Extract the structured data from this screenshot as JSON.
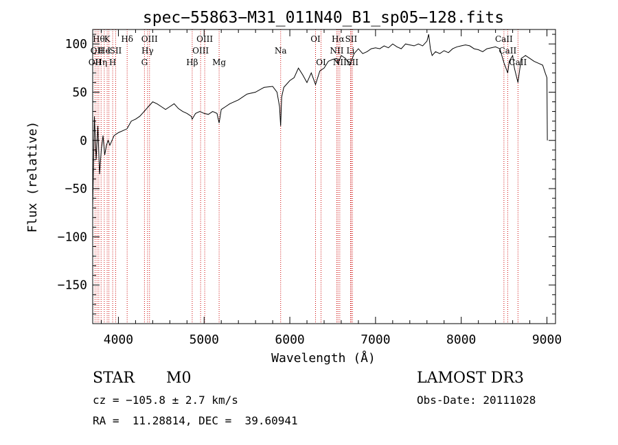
{
  "chart_data": {
    "type": "line",
    "title": "spec−55863−M31_011N40_B1_sp05−128.fits",
    "xlabel": "Wavelength (Å)",
    "ylabel": "Flux (relative)",
    "xlim": [
      3700,
      9100
    ],
    "ylim": [
      -190,
      115
    ],
    "xticks": [
      4000,
      5000,
      6000,
      7000,
      8000,
      9000
    ],
    "yticks": [
      100,
      50,
      0,
      -50,
      -100,
      -150
    ],
    "ytick_labels": [
      "100",
      "50",
      "0",
      "−50",
      "−100",
      "−150"
    ],
    "series": [
      {
        "name": "spectrum",
        "x": [
          3700,
          3720,
          3740,
          3760,
          3780,
          3800,
          3820,
          3840,
          3860,
          3880,
          3900,
          3950,
          4000,
          4050,
          4100,
          4150,
          4200,
          4250,
          4300,
          4350,
          4400,
          4450,
          4500,
          4550,
          4600,
          4650,
          4700,
          4750,
          4800,
          4850,
          4861,
          4900,
          4950,
          5000,
          5050,
          5100,
          5150,
          5175,
          5200,
          5250,
          5300,
          5400,
          5500,
          5600,
          5700,
          5800,
          5850,
          5880,
          5893,
          5905,
          5930,
          6000,
          6050,
          6100,
          6150,
          6200,
          6250,
          6300,
          6350,
          6400,
          6450,
          6500,
          6550,
          6563,
          6600,
          6650,
          6700,
          6750,
          6800,
          6850,
          6900,
          6950,
          7000,
          7050,
          7100,
          7150,
          7200,
          7250,
          7300,
          7350,
          7400,
          7450,
          7500,
          7550,
          7600,
          7620,
          7640,
          7660,
          7700,
          7750,
          7800,
          7850,
          7900,
          7950,
          8000,
          8050,
          8100,
          8150,
          8200,
          8250,
          8300,
          8350,
          8400,
          8450,
          8500,
          8542,
          8560,
          8600,
          8620,
          8662,
          8700,
          8750,
          8800,
          8850,
          8900,
          8950,
          8980,
          9000,
          9005
        ],
        "y": [
          -70,
          25,
          -20,
          15,
          -35,
          -10,
          5,
          -15,
          -5,
          0,
          -5,
          5,
          8,
          10,
          12,
          20,
          22,
          25,
          30,
          35,
          40,
          38,
          35,
          32,
          35,
          38,
          33,
          30,
          28,
          25,
          22,
          28,
          30,
          28,
          27,
          30,
          28,
          18,
          32,
          35,
          38,
          42,
          48,
          50,
          55,
          56,
          50,
          35,
          15,
          45,
          55,
          62,
          65,
          75,
          68,
          60,
          70,
          58,
          72,
          75,
          82,
          84,
          85,
          80,
          88,
          85,
          78,
          90,
          95,
          90,
          92,
          95,
          96,
          95,
          98,
          96,
          100,
          97,
          95,
          100,
          99,
          98,
          100,
          98,
          103,
          110,
          95,
          88,
          92,
          90,
          93,
          91,
          95,
          97,
          98,
          99,
          98,
          95,
          94,
          92,
          95,
          96,
          97,
          95,
          80,
          70,
          82,
          88,
          75,
          60,
          85,
          88,
          85,
          82,
          80,
          78,
          70,
          65,
          0
        ]
      }
    ],
    "lines": [
      {
        "wl": 3727,
        "row": 2,
        "label": "OII"
      },
      {
        "wl": 3750,
        "row": 1,
        "label": "OII"
      },
      {
        "wl": 3771,
        "row": 0,
        "label": "Hθ"
      },
      {
        "wl": 3798,
        "row": 2,
        "label": "Hη"
      },
      {
        "wl": 3835,
        "row": 1,
        "label": "He"
      },
      {
        "wl": 3869,
        "row": 0,
        "label": "K"
      },
      {
        "wl": 3889,
        "row": 1,
        "label": "I"
      },
      {
        "wl": 3933,
        "row": 2,
        "label": "H"
      },
      {
        "wl": 3968,
        "row": 1,
        "label": "SII"
      },
      {
        "wl": 4102,
        "row": 0,
        "label": "Hδ"
      },
      {
        "wl": 4304,
        "row": 2,
        "label": "G"
      },
      {
        "wl": 4340,
        "row": 1,
        "label": "Hγ"
      },
      {
        "wl": 4363,
        "row": 0,
        "label": "OIII"
      },
      {
        "wl": 4861,
        "row": 2,
        "label": "Hβ"
      },
      {
        "wl": 4959,
        "row": 1,
        "label": "OIII"
      },
      {
        "wl": 5007,
        "row": 0,
        "label": "OIII"
      },
      {
        "wl": 5175,
        "row": 2,
        "label": "Mg"
      },
      {
        "wl": 5893,
        "row": 1,
        "label": "Na"
      },
      {
        "wl": 6300,
        "row": 0,
        "label": "OI"
      },
      {
        "wl": 6364,
        "row": 2,
        "label": "OI"
      },
      {
        "wl": 6548,
        "row": 1,
        "label": "NII"
      },
      {
        "wl": 6563,
        "row": 0,
        "label": "Hα"
      },
      {
        "wl": 6583,
        "row": 2,
        "label": "NII"
      },
      {
        "wl": 6708,
        "row": 1,
        "label": "Li"
      },
      {
        "wl": 6716,
        "row": 0,
        "label": "SII"
      },
      {
        "wl": 6731,
        "row": 2,
        "label": "SII"
      },
      {
        "wl": 8498,
        "row": 0,
        "label": "CaII"
      },
      {
        "wl": 8542,
        "row": 1,
        "label": "CaII"
      },
      {
        "wl": 8662,
        "row": 2,
        "label": "CaII"
      }
    ]
  },
  "info": {
    "class": "STAR",
    "subclass": "M0",
    "survey": "LAMOST DR3",
    "cz": "cz = −105.8 ± 2.7 km/s",
    "obs_date": "Obs-Date: 20111028",
    "coords": "RA =  11.28814, DEC =  39.60941"
  },
  "colors": {
    "line_marker": "#cc0000",
    "spectrum": "#000000"
  }
}
